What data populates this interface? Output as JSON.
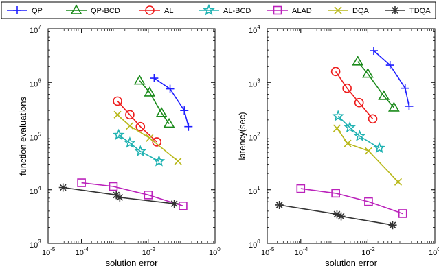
{
  "chart_data": {
    "type": "line",
    "legend": {
      "placement": "top",
      "entries": [
        {
          "name": "QP",
          "color": "#1f1fff",
          "marker": "plus"
        },
        {
          "name": "QP-BCD",
          "color": "#1a8a1a",
          "marker": "triangle"
        },
        {
          "name": "AL",
          "color": "#ee1c1c",
          "marker": "circle"
        },
        {
          "name": "AL-BCD",
          "color": "#20b2b2",
          "marker": "star"
        },
        {
          "name": "ALAD",
          "color": "#bb22bb",
          "marker": "square"
        },
        {
          "name": "DQA",
          "color": "#b8b81a",
          "marker": "x"
        },
        {
          "name": "TDQA",
          "color": "#333333",
          "marker": "asterisk"
        }
      ]
    },
    "panels": [
      {
        "xlabel": "solution error",
        "ylabel": "function evaluations",
        "xscale": "log",
        "yscale": "log",
        "xlim": [
          1e-05,
          1
        ],
        "ylim": [
          1000,
          10000000
        ],
        "x_ticks": [
          {
            "base": "10",
            "exp": "-5"
          },
          {
            "base": "10",
            "exp": "-4"
          },
          {
            "base": "10",
            "exp": "-2"
          },
          {
            "base": "10",
            "exp": "0"
          }
        ],
        "y_ticks": [
          {
            "base": "10",
            "exp": "3"
          },
          {
            "base": "10",
            "exp": "4"
          },
          {
            "base": "10",
            "exp": "5"
          },
          {
            "base": "10",
            "exp": "6"
          },
          {
            "base": "10",
            "exp": "7"
          }
        ],
        "series": [
          {
            "name": "QP",
            "points": [
              [
                0.015,
                1200000
              ],
              [
                0.045,
                760000
              ],
              [
                0.12,
                300000
              ],
              [
                0.16,
                150000
              ]
            ]
          },
          {
            "name": "QP-BCD",
            "points": [
              [
                0.0055,
                1080000
              ],
              [
                0.011,
                650000
              ],
              [
                0.025,
                270000
              ],
              [
                0.042,
                170000
              ]
            ]
          },
          {
            "name": "AL",
            "points": [
              [
                0.0012,
                450000
              ],
              [
                0.0028,
                250000
              ],
              [
                0.0058,
                150000
              ],
              [
                0.018,
                78000
              ]
            ]
          },
          {
            "name": "AL-BCD",
            "points": [
              [
                0.0013,
                105000
              ],
              [
                0.0028,
                75000
              ],
              [
                0.0058,
                52000
              ],
              [
                0.021,
                34000
              ]
            ]
          },
          {
            "name": "ALAD",
            "points": [
              [
                0.0001,
                13500
              ],
              [
                0.0009,
                11500
              ],
              [
                0.01,
                8000
              ],
              [
                0.11,
                5000
              ]
            ]
          },
          {
            "name": "DQA",
            "points": [
              [
                0.0012,
                250000
              ],
              [
                0.0028,
                155000
              ],
              [
                0.011,
                92000
              ],
              [
                0.078,
                34000
              ]
            ]
          },
          {
            "name": "TDQA",
            "points": [
              [
                2.8e-05,
                11000
              ],
              [
                0.0011,
                8000
              ],
              [
                0.0014,
                7200
              ],
              [
                0.06,
                5500
              ]
            ]
          }
        ]
      },
      {
        "xlabel": "solution error",
        "ylabel": "latency(sec)",
        "xscale": "log",
        "yscale": "log",
        "xlim": [
          1e-05,
          1
        ],
        "ylim": [
          1,
          10000
        ],
        "x_ticks": [
          {
            "base": "10",
            "exp": "-5"
          },
          {
            "base": "10",
            "exp": "-4"
          },
          {
            "base": "10",
            "exp": "-2"
          },
          {
            "base": "10",
            "exp": "0"
          }
        ],
        "y_ticks": [
          {
            "base": "10",
            "exp": "0"
          },
          {
            "base": "10",
            "exp": "1"
          },
          {
            "base": "10",
            "exp": "2"
          },
          {
            "base": "10",
            "exp": "3"
          },
          {
            "base": "10",
            "exp": "4"
          }
        ],
        "series": [
          {
            "name": "QP",
            "points": [
              [
                0.015,
                3900
              ],
              [
                0.046,
                2100
              ],
              [
                0.13,
                780
              ],
              [
                0.17,
                360
              ]
            ]
          },
          {
            "name": "QP-BCD",
            "points": [
              [
                0.005,
                2450
              ],
              [
                0.01,
                1450
              ],
              [
                0.03,
                560
              ],
              [
                0.06,
                340
              ]
            ]
          },
          {
            "name": "AL",
            "points": [
              [
                0.0011,
                1600
              ],
              [
                0.0024,
                780
              ],
              [
                0.0055,
                420
              ],
              [
                0.014,
                210
              ]
            ]
          },
          {
            "name": "AL-BCD",
            "points": [
              [
                0.0013,
                235
              ],
              [
                0.0029,
                145
              ],
              [
                0.0057,
                100
              ],
              [
                0.022,
                60
              ]
            ]
          },
          {
            "name": "ALAD",
            "points": [
              [
                0.0001,
                10.5
              ],
              [
                0.0011,
                8.6
              ],
              [
                0.0105,
                6
              ],
              [
                0.11,
                3.6
              ]
            ]
          },
          {
            "name": "DQA",
            "points": [
              [
                0.0012,
                140
              ],
              [
                0.0025,
                73
              ],
              [
                0.0105,
                53
              ],
              [
                0.08,
                14
              ]
            ]
          },
          {
            "name": "TDQA",
            "points": [
              [
                2.3e-05,
                5.2
              ],
              [
                0.0012,
                3.5
              ],
              [
                0.0016,
                3.2
              ],
              [
                0.055,
                2.2
              ]
            ]
          }
        ]
      }
    ]
  }
}
